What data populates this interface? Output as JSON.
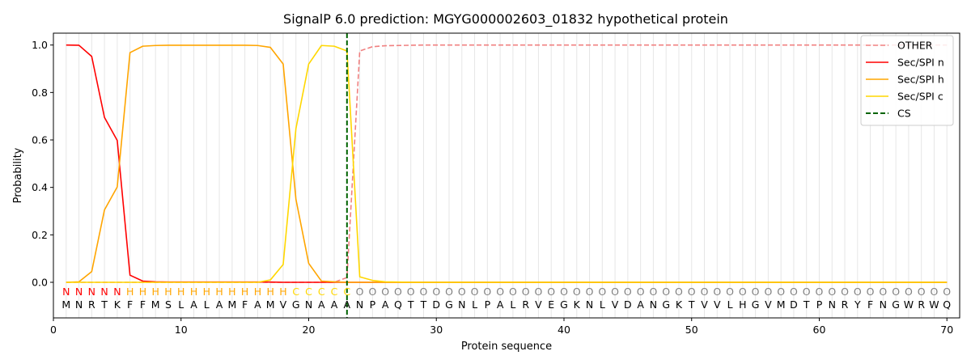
{
  "chart_data": {
    "type": "line",
    "title": "SignalP 6.0 prediction: MGYG000002603_01832 hypothetical protein",
    "xlabel": "Protein sequence",
    "ylabel": "Probability",
    "xlim": [
      0,
      71
    ],
    "ylim": [
      -0.15,
      1.05
    ],
    "xticks": [
      0,
      10,
      20,
      30,
      40,
      50,
      60,
      70
    ],
    "yticks": [
      0.0,
      0.2,
      0.4,
      0.6,
      0.8,
      1.0
    ],
    "ytick_labels": [
      "0.0",
      "0.2",
      "0.4",
      "0.6",
      "0.8",
      "1.0"
    ],
    "grid": "vertical lines at every residue",
    "legend_position": "top-right",
    "sequence": [
      "M",
      "N",
      "R",
      "T",
      "K",
      "F",
      "F",
      "M",
      "S",
      "L",
      "A",
      "L",
      "A",
      "M",
      "F",
      "A",
      "M",
      "V",
      "G",
      "N",
      "A",
      "A",
      "A",
      "N",
      "P",
      "A",
      "Q",
      "T",
      "T",
      "D",
      "G",
      "N",
      "L",
      "P",
      "A",
      "L",
      "R",
      "V",
      "E",
      "G",
      "K",
      "N",
      "L",
      "V",
      "D",
      "A",
      "N",
      "G",
      "K",
      "T",
      "V",
      "V",
      "L",
      "H",
      "G",
      "V",
      "M",
      "D",
      "T",
      "P",
      "N",
      "R",
      "Y",
      "F",
      "N",
      "G",
      "W",
      "R",
      "W",
      "Q"
    ],
    "region_labels": [
      "N",
      "N",
      "N",
      "N",
      "N",
      "H",
      "H",
      "H",
      "H",
      "H",
      "H",
      "H",
      "H",
      "H",
      "H",
      "H",
      "H",
      "H",
      "C",
      "C",
      "C",
      "C",
      "C",
      "O",
      "O",
      "O",
      "O",
      "O",
      "O",
      "O",
      "O",
      "O",
      "O",
      "O",
      "O",
      "O",
      "O",
      "O",
      "O",
      "O",
      "O",
      "O",
      "O",
      "O",
      "O",
      "O",
      "O",
      "O",
      "O",
      "O",
      "O",
      "O",
      "O",
      "O",
      "O",
      "O",
      "O",
      "O",
      "O",
      "O",
      "O",
      "O",
      "O",
      "O",
      "O",
      "O",
      "O",
      "O",
      "O",
      "O"
    ],
    "region_colors": {
      "N": "#ff0000",
      "H": "#ffa500",
      "C": "#ffd700",
      "O": "#808080"
    },
    "cleavage_site": 23,
    "series": [
      {
        "name": "OTHER",
        "color": "#f08080",
        "dash": "dashed",
        "x": [
          1,
          2,
          3,
          4,
          5,
          6,
          7,
          8,
          9,
          10,
          11,
          12,
          13,
          14,
          15,
          16,
          17,
          18,
          19,
          20,
          21,
          22,
          23,
          24,
          25,
          26,
          27,
          28,
          29,
          30,
          31,
          32,
          33,
          34,
          35,
          36,
          37,
          38,
          39,
          40,
          41,
          42,
          43,
          44,
          45,
          46,
          47,
          48,
          49,
          50,
          51,
          52,
          53,
          54,
          55,
          56,
          57,
          58,
          59,
          60,
          61,
          62,
          63,
          64,
          65,
          66,
          67,
          68,
          69,
          70
        ],
        "values": [
          0,
          0,
          0,
          0,
          0,
          0,
          0,
          0,
          0,
          0,
          0,
          0,
          0,
          0,
          0,
          0,
          0,
          0,
          0,
          0,
          0,
          0,
          0.02,
          0.975,
          0.993,
          0.997,
          0.998,
          0.999,
          1,
          1,
          1,
          1,
          1,
          1,
          1,
          1,
          1,
          1,
          1,
          1,
          1,
          1,
          1,
          1,
          1,
          1,
          1,
          1,
          1,
          1,
          1,
          1,
          1,
          1,
          1,
          1,
          1,
          1,
          1,
          1,
          1,
          1,
          1,
          1,
          1,
          1,
          1,
          1,
          1,
          1
        ]
      },
      {
        "name": "Sec/SPI n",
        "color": "#ff0000",
        "dash": "solid",
        "x": [
          1,
          2,
          3,
          4,
          5,
          6,
          7,
          8,
          9,
          10,
          11,
          12,
          13,
          14,
          15,
          16,
          17,
          18,
          19,
          20,
          21,
          22,
          23,
          24,
          25,
          26,
          27,
          28,
          29,
          30,
          31,
          32,
          33,
          34,
          35,
          36,
          37,
          38,
          39,
          40,
          41,
          42,
          43,
          44,
          45,
          46,
          47,
          48,
          49,
          50,
          51,
          52,
          53,
          54,
          55,
          56,
          57,
          58,
          59,
          60,
          61,
          62,
          63,
          64,
          65,
          66,
          67,
          68,
          69,
          70
        ],
        "values": [
          1.0,
          0.999,
          0.952,
          0.695,
          0.598,
          0.03,
          0.005,
          0.002,
          0.001,
          0.001,
          0.001,
          0.001,
          0.001,
          0.001,
          0.001,
          0.001,
          0.001,
          0,
          0,
          0,
          0,
          0,
          0,
          0,
          0,
          0,
          0,
          0,
          0,
          0,
          0,
          0,
          0,
          0,
          0,
          0,
          0,
          0,
          0,
          0,
          0,
          0,
          0,
          0,
          0,
          0,
          0,
          0,
          0,
          0,
          0,
          0,
          0,
          0,
          0,
          0,
          0,
          0,
          0,
          0,
          0,
          0,
          0,
          0,
          0,
          0,
          0,
          0,
          0,
          0
        ]
      },
      {
        "name": "Sec/SPI h",
        "color": "#ffa500",
        "dash": "solid",
        "x": [
          1,
          2,
          3,
          4,
          5,
          6,
          7,
          8,
          9,
          10,
          11,
          12,
          13,
          14,
          15,
          16,
          17,
          18,
          19,
          20,
          21,
          22,
          23,
          24,
          25,
          26,
          27,
          28,
          29,
          30,
          31,
          32,
          33,
          34,
          35,
          36,
          37,
          38,
          39,
          40,
          41,
          42,
          43,
          44,
          45,
          46,
          47,
          48,
          49,
          50,
          51,
          52,
          53,
          54,
          55,
          56,
          57,
          58,
          59,
          60,
          61,
          62,
          63,
          64,
          65,
          66,
          67,
          68,
          69,
          70
        ],
        "values": [
          0,
          0.002,
          0.045,
          0.305,
          0.402,
          0.968,
          0.995,
          0.998,
          0.999,
          0.999,
          0.999,
          0.999,
          0.999,
          0.999,
          0.999,
          0.998,
          0.99,
          0.92,
          0.35,
          0.08,
          0.005,
          0.002,
          0,
          0,
          0,
          0,
          0,
          0,
          0,
          0,
          0,
          0,
          0,
          0,
          0,
          0,
          0,
          0,
          0,
          0,
          0,
          0,
          0,
          0,
          0,
          0,
          0,
          0,
          0,
          0,
          0,
          0,
          0,
          0,
          0,
          0,
          0,
          0,
          0,
          0,
          0,
          0,
          0,
          0,
          0,
          0,
          0,
          0,
          0,
          0
        ]
      },
      {
        "name": "Sec/SPI c",
        "color": "#ffd700",
        "dash": "solid",
        "x": [
          1,
          2,
          3,
          4,
          5,
          6,
          7,
          8,
          9,
          10,
          11,
          12,
          13,
          14,
          15,
          16,
          17,
          18,
          19,
          20,
          21,
          22,
          23,
          24,
          25,
          26,
          27,
          28,
          29,
          30,
          31,
          32,
          33,
          34,
          35,
          36,
          37,
          38,
          39,
          40,
          41,
          42,
          43,
          44,
          45,
          46,
          47,
          48,
          49,
          50,
          51,
          52,
          53,
          54,
          55,
          56,
          57,
          58,
          59,
          60,
          61,
          62,
          63,
          64,
          65,
          66,
          67,
          68,
          69,
          70
        ],
        "values": [
          0,
          0,
          0,
          0,
          0,
          0,
          0,
          0,
          0,
          0,
          0,
          0,
          0,
          0,
          0,
          0,
          0.01,
          0.075,
          0.648,
          0.92,
          0.998,
          0.995,
          0.975,
          0.023,
          0.008,
          0.002,
          0.001,
          0,
          0,
          0,
          0,
          0,
          0,
          0,
          0,
          0,
          0,
          0,
          0,
          0,
          0,
          0,
          0,
          0,
          0,
          0,
          0,
          0,
          0,
          0,
          0,
          0,
          0,
          0,
          0,
          0,
          0,
          0,
          0,
          0,
          0,
          0,
          0,
          0,
          0,
          0,
          0,
          0,
          0,
          0
        ]
      },
      {
        "name": "CS",
        "color": "#006400",
        "dash": "dashed",
        "vertical_at": 23
      }
    ]
  }
}
